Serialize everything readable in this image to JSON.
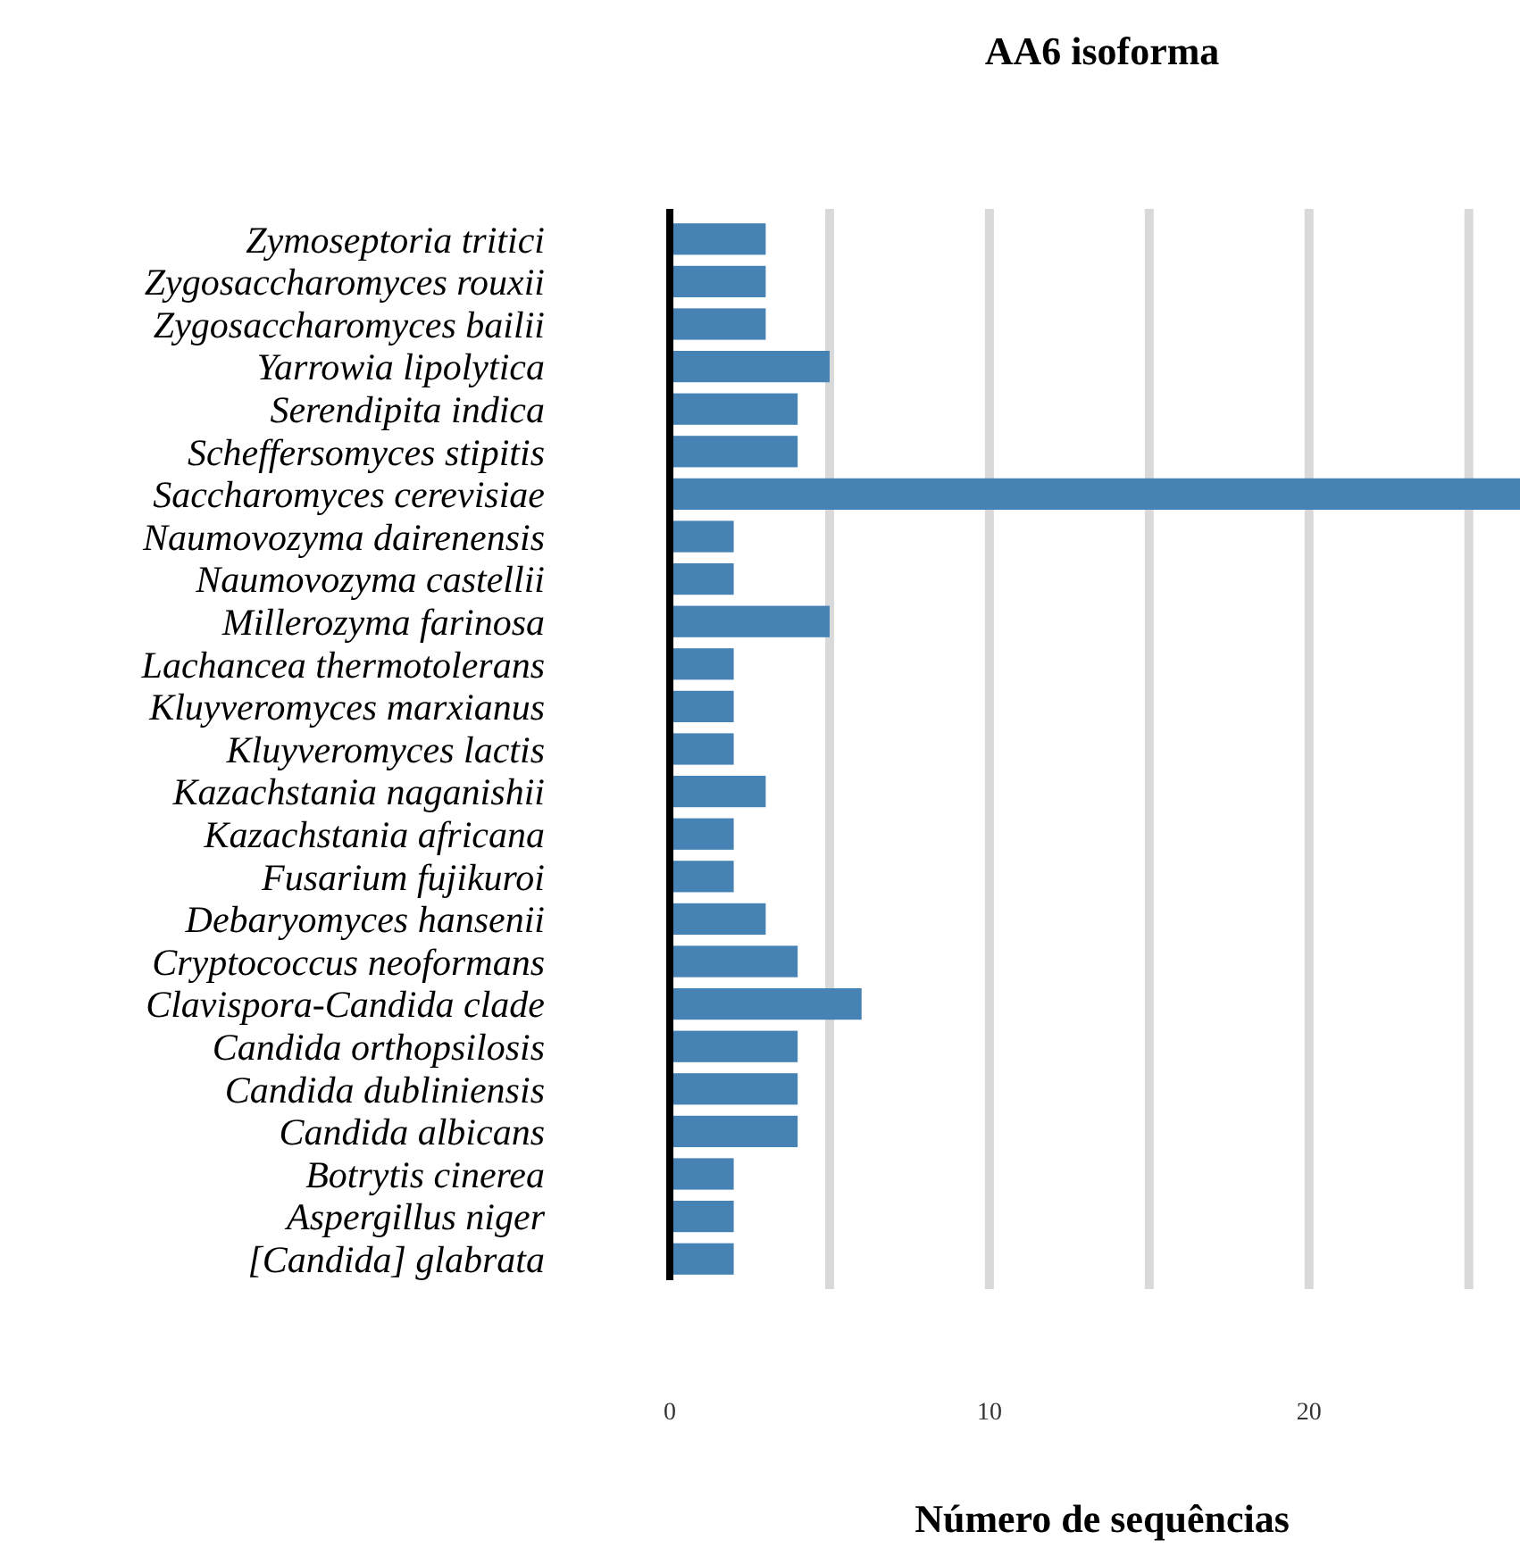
{
  "chart_data": {
    "type": "bar",
    "orientation": "horizontal",
    "title": "AA6 isoforma",
    "xlabel": "Número de sequências",
    "categories": [
      "Zymoseptoria tritici",
      "Zygosaccharomyces rouxii",
      "Zygosaccharomyces bailii",
      "Yarrowia lipolytica",
      "Serendipita indica",
      "Scheffersomyces stipitis",
      "Saccharomyces cerevisiae",
      "Naumovozyma dairenensis",
      "Naumovozyma castellii",
      "Millerozyma farinosa",
      "Lachancea thermotolerans",
      "Kluyveromyces marxianus",
      "Kluyveromyces lactis",
      "Kazachstania naganishii",
      "Kazachstania africana",
      "Fusarium fujikuroi",
      "Debaryomyces hansenii",
      "Cryptococcus neoformans",
      "Clavispora-Candida clade",
      "Candida orthopsilosis",
      "Candida dubliniensis",
      "Candida albicans",
      "Botrytis cinerea",
      "Aspergillus niger",
      "[Candida] glabrata"
    ],
    "values": [
      3,
      3,
      3,
      5,
      4,
      4,
      26.6,
      2,
      2,
      5,
      2,
      2,
      2,
      3,
      2,
      2,
      3,
      4,
      6,
      4,
      4,
      4,
      2,
      2,
      2
    ],
    "color": "#4682b4",
    "xlim": [
      0,
      26.6
    ],
    "xticks": [
      0,
      {
        "value": 5,
        "label": null
      },
      10,
      {
        "value": 15,
        "label": null
      },
      20,
      {
        "value": 25,
        "label": null
      }
    ],
    "grid": "x"
  }
}
